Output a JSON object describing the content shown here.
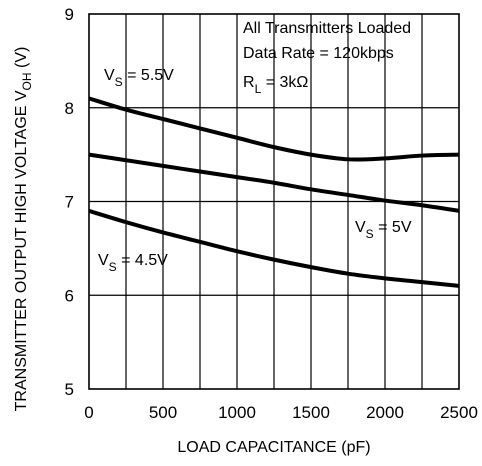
{
  "chart_data": {
    "type": "line",
    "xlabel": "LOAD CAPACITANCE (pF)",
    "ylabel_main": "TRANSMITTER OUTPUT HIGH VOLTAGE V",
    "ylabel_sub": "OH",
    "ylabel_unit": " (V)",
    "xlim": [
      0,
      2500
    ],
    "ylim": [
      5,
      9
    ],
    "xticks": [
      0,
      500,
      1000,
      1500,
      2000,
      2500
    ],
    "yticks": [
      5,
      6,
      7,
      8,
      9
    ],
    "grid": true,
    "conditions": {
      "line1": "All Transmitters Loaded",
      "line2": "Data Rate = 120kbps",
      "rl_main": "R",
      "rl_sub": "L",
      "rl_value": " = 3kΩ"
    },
    "series": [
      {
        "id": "vs55",
        "label_main": "V",
        "label_sub": "S",
        "label_value": " = 5.5V",
        "x": [
          0,
          250,
          500,
          750,
          1000,
          1250,
          1500,
          1750,
          2000,
          2250,
          2500
        ],
        "y": [
          8.1,
          7.98,
          7.88,
          7.78,
          7.68,
          7.58,
          7.5,
          7.45,
          7.46,
          7.49,
          7.5
        ]
      },
      {
        "id": "vs5",
        "label_main": "V",
        "label_sub": "S",
        "label_value": " = 5V",
        "x": [
          0,
          250,
          500,
          750,
          1000,
          1250,
          1500,
          1750,
          2000,
          2250,
          2500
        ],
        "y": [
          7.5,
          7.44,
          7.38,
          7.32,
          7.26,
          7.2,
          7.13,
          7.07,
          7.01,
          6.96,
          6.9
        ]
      },
      {
        "id": "vs45",
        "label_main": "V",
        "label_sub": "S",
        "label_value": " = 4.5V",
        "x": [
          0,
          250,
          500,
          750,
          1000,
          1250,
          1500,
          1750,
          2000,
          2250,
          2500
        ],
        "y": [
          6.9,
          6.78,
          6.67,
          6.57,
          6.47,
          6.38,
          6.3,
          6.23,
          6.18,
          6.14,
          6.1
        ]
      }
    ]
  }
}
